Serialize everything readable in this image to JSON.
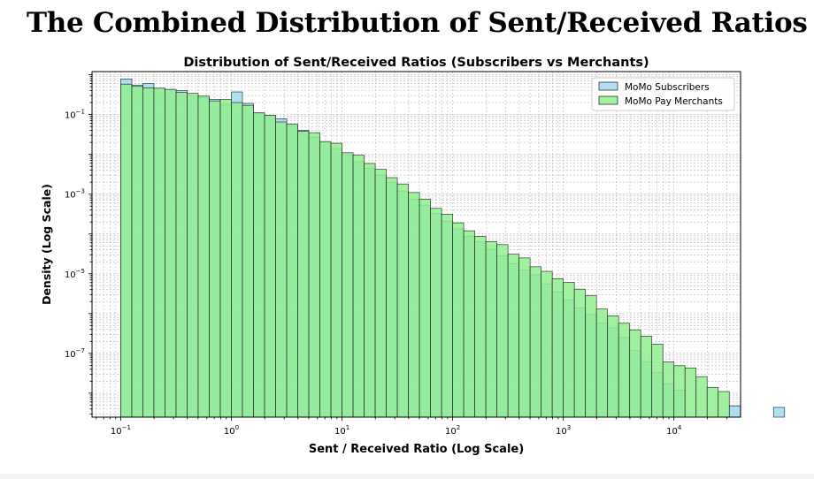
{
  "page": {
    "title": "The Combined Distribution of Sent/Received Ratios"
  },
  "chart_data": {
    "type": "bar",
    "title": "Distribution of Sent/Received Ratios (Subscribers vs Merchants)",
    "xlabel": "Sent / Received Ratio (Log Scale)",
    "ylabel": "Density (Log Scale)",
    "x_scale": "log",
    "y_scale": "log",
    "xlim": [
      0.055,
      40000
    ],
    "ylim": [
      2.5e-09,
      1.2
    ],
    "x_ticks": [
      {
        "value": 0.1,
        "base": "10",
        "exp": "−1"
      },
      {
        "value": 1,
        "base": "10",
        "exp": "0"
      },
      {
        "value": 10,
        "base": "10",
        "exp": "1"
      },
      {
        "value": 100,
        "base": "10",
        "exp": "2"
      },
      {
        "value": 1000,
        "base": "10",
        "exp": "3"
      },
      {
        "value": 10000,
        "base": "10",
        "exp": "4"
      }
    ],
    "y_ticks": [
      {
        "value": 0.1,
        "base": "10",
        "exp": "−1"
      },
      {
        "value": 0.001,
        "base": "10",
        "exp": "−3"
      },
      {
        "value": 1e-05,
        "base": "10",
        "exp": "−5"
      },
      {
        "value": 1e-07,
        "base": "10",
        "exp": "−7"
      }
    ],
    "grid": true,
    "legend_position": "top-right",
    "bin_log_start": -1,
    "bin_log_width": 0.1,
    "series": [
      {
        "name": "MoMo Subscribers",
        "color": "#87ceeb",
        "opacity": 0.65,
        "values": [
          0.78,
          0.55,
          0.6,
          0.45,
          0.42,
          0.4,
          0.3,
          0.27,
          0.24,
          0.18,
          0.37,
          0.19,
          0.11,
          0.094,
          0.078,
          0.052,
          0.04,
          0.027,
          0.02,
          0.014,
          0.0098,
          0.0065,
          0.0045,
          0.003,
          0.002,
          0.0012,
          0.00075,
          0.00053,
          0.00033,
          0.00021,
          0.000135,
          8.75e-05,
          6.4e-05,
          4.12e-05,
          2.8e-05,
          1.78e-05,
          1.24e-05,
          9.4e-06,
          5.6e-06,
          3.5e-06,
          2.2e-06,
          1.4e-06,
          9.4e-07,
          5.8e-07,
          4.4e-07,
          2.5e-07,
          1.18e-07,
          6.2e-08,
          3.3e-08,
          1.7e-08,
          1.2e-08,
          0,
          0,
          0,
          0,
          4.8e-09,
          0,
          0,
          0,
          4.4e-09,
          0
        ]
      },
      {
        "name": "MoMo Pay Merchants",
        "color": "#90ee90",
        "opacity": 0.85,
        "values": [
          0.58,
          0.51,
          0.47,
          0.46,
          0.43,
          0.36,
          0.34,
          0.29,
          0.22,
          0.24,
          0.2,
          0.17,
          0.11,
          0.096,
          0.065,
          0.058,
          0.038,
          0.035,
          0.021,
          0.019,
          0.011,
          0.0095,
          0.0059,
          0.0042,
          0.0026,
          0.0018,
          0.0011,
          0.00075,
          0.00044,
          0.00031,
          0.00019,
          0.00012,
          8.7e-05,
          6.4e-05,
          5.4e-05,
          3.1e-05,
          2.5e-05,
          1.5e-05,
          1.15e-05,
          7.5e-06,
          6.1e-06,
          4.1e-06,
          2.8e-06,
          1.3e-06,
          8.8e-07,
          5.7e-07,
          3.9e-07,
          2.7e-07,
          1.7e-07,
          6.1e-08,
          4.9e-08,
          4.3e-08,
          2.6e-08,
          1.4e-08,
          1.1e-08,
          0,
          0,
          0,
          0,
          0,
          0
        ]
      }
    ]
  }
}
